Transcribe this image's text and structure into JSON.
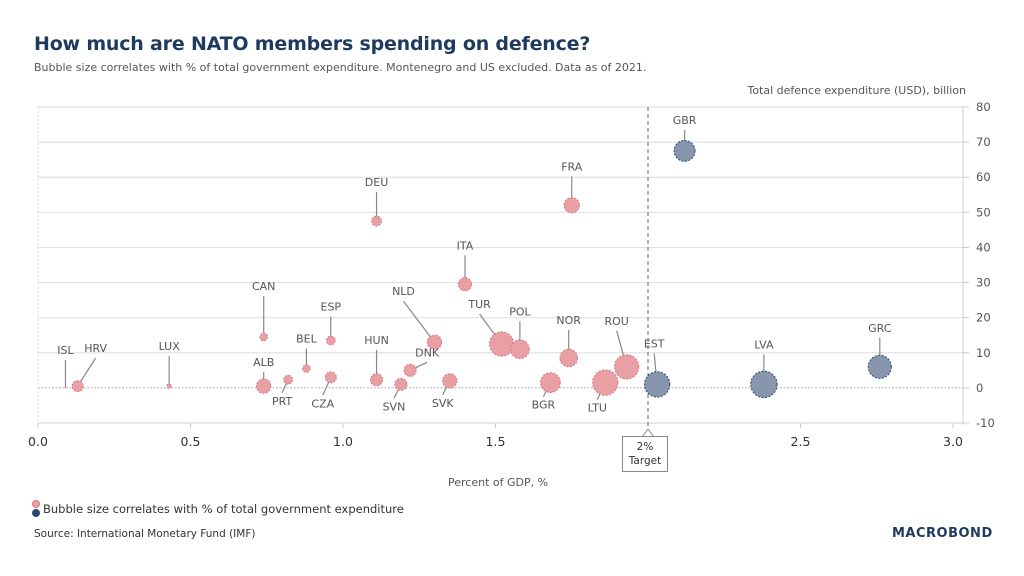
{
  "header": {
    "title": "How much are NATO members spending on defence?",
    "subtitle": "Bubble size correlates with % of total government expenditure. Montenegro and US excluded. Data as of 2021."
  },
  "legend": {
    "text": "Bubble size correlates with % of total government expenditure"
  },
  "footer": {
    "source": "Source: International Monetary Fund (IMF)",
    "logo": "MACROBOND"
  },
  "target": {
    "line1": "2%",
    "line2": "Target",
    "value": 2.0
  },
  "colors": {
    "below": "#e8a0a5",
    "below_stroke": "#d9757f",
    "above": "#8796ad",
    "above_stroke": "#2c4470"
  },
  "chart_data": {
    "type": "scatter",
    "title": "How much are NATO members spending on defence?",
    "xlabel": "Percent of GDP, %",
    "ylabel": "Total defence expenditure (USD), billion",
    "xlim": [
      0.0,
      3.0
    ],
    "ylim": [
      -10,
      80
    ],
    "xticks": [
      "0.0",
      "0.5",
      "1.0",
      "1.5",
      "2.5",
      "3.0"
    ],
    "xtick_values": [
      0.0,
      0.5,
      1.0,
      1.5,
      2.5,
      3.0
    ],
    "yticks": [
      "80",
      "70",
      "60",
      "50",
      "40",
      "30",
      "20",
      "10",
      "0",
      "-10"
    ],
    "ytick_values": [
      80,
      70,
      60,
      50,
      40,
      30,
      20,
      10,
      0,
      -10
    ],
    "grid": true,
    "legend_position": "bottom-left",
    "points": [
      {
        "label": "ISL",
        "x": 0.09,
        "y": 0.0,
        "size": 0.0,
        "above_target": false
      },
      {
        "label": "HRV",
        "x": 0.13,
        "y": 0.5,
        "size": 1.0,
        "above_target": false
      },
      {
        "label": "LUX",
        "x": 0.43,
        "y": 0.5,
        "size": 0.4,
        "above_target": false
      },
      {
        "label": "ALB",
        "x": 0.74,
        "y": 0.5,
        "size": 1.3,
        "above_target": false
      },
      {
        "label": "PRT",
        "x": 0.82,
        "y": 2.3,
        "size": 0.8,
        "above_target": false
      },
      {
        "label": "BEL",
        "x": 0.88,
        "y": 5.5,
        "size": 0.7,
        "above_target": false
      },
      {
        "label": "CAN",
        "x": 0.74,
        "y": 14.5,
        "size": 0.7,
        "above_target": false
      },
      {
        "label": "ESP",
        "x": 0.96,
        "y": 13.5,
        "size": 0.8,
        "above_target": false
      },
      {
        "label": "CZA",
        "x": 0.96,
        "y": 3.0,
        "size": 1.0,
        "above_target": false
      },
      {
        "label": "DEU",
        "x": 1.11,
        "y": 47.5,
        "size": 0.9,
        "above_target": false
      },
      {
        "label": "HUN",
        "x": 1.11,
        "y": 2.3,
        "size": 1.1,
        "above_target": false
      },
      {
        "label": "SVN",
        "x": 1.19,
        "y": 1.0,
        "size": 1.1,
        "above_target": false
      },
      {
        "label": "DNK",
        "x": 1.22,
        "y": 5.0,
        "size": 1.1,
        "above_target": false
      },
      {
        "label": "NLD",
        "x": 1.3,
        "y": 13.0,
        "size": 1.3,
        "above_target": false
      },
      {
        "label": "SVK",
        "x": 1.35,
        "y": 2.0,
        "size": 1.3,
        "above_target": false
      },
      {
        "label": "ITA",
        "x": 1.4,
        "y": 29.5,
        "size": 1.2,
        "above_target": false
      },
      {
        "label": "TUR",
        "x": 1.52,
        "y": 12.5,
        "size": 2.2,
        "above_target": false
      },
      {
        "label": "POL",
        "x": 1.58,
        "y": 11.0,
        "size": 1.7,
        "above_target": false
      },
      {
        "label": "FRA",
        "x": 1.75,
        "y": 52.0,
        "size": 1.4,
        "above_target": false
      },
      {
        "label": "BGR",
        "x": 1.68,
        "y": 1.5,
        "size": 1.8,
        "above_target": false
      },
      {
        "label": "NOR",
        "x": 1.74,
        "y": 8.5,
        "size": 1.6,
        "above_target": false
      },
      {
        "label": "LTU",
        "x": 1.86,
        "y": 1.5,
        "size": 2.3,
        "above_target": false
      },
      {
        "label": "ROU",
        "x": 1.93,
        "y": 6.0,
        "size": 2.2,
        "above_target": false
      },
      {
        "label": "EST",
        "x": 2.03,
        "y": 1.0,
        "size": 2.3,
        "above_target": true
      },
      {
        "label": "GBR",
        "x": 2.12,
        "y": 67.5,
        "size": 1.9,
        "above_target": true
      },
      {
        "label": "LVA",
        "x": 2.38,
        "y": 1.0,
        "size": 2.4,
        "above_target": true
      },
      {
        "label": "GRC",
        "x": 2.76,
        "y": 6.0,
        "size": 2.1,
        "above_target": true
      }
    ]
  }
}
